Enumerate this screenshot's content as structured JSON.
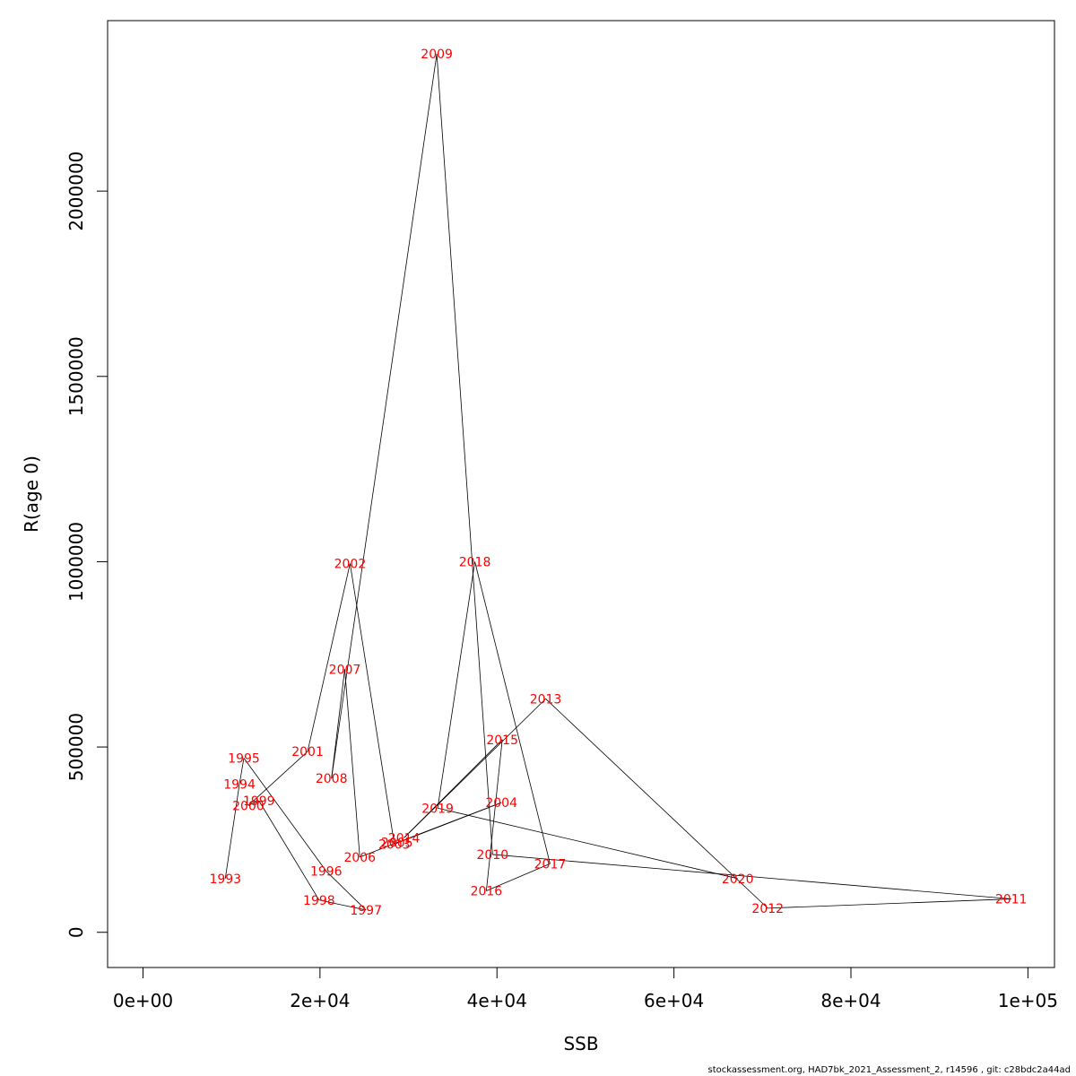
{
  "chart_data": {
    "type": "line",
    "title": "",
    "xlabel": "SSB",
    "ylabel": "R(age 0)",
    "xlim": [
      -4000,
      103000
    ],
    "ylim": [
      -95000,
      2460000
    ],
    "grid": false,
    "x_ticks": [
      {
        "value": 0,
        "label": "0e+00"
      },
      {
        "value": 20000,
        "label": "2e+04"
      },
      {
        "value": 40000,
        "label": "4e+04"
      },
      {
        "value": 60000,
        "label": "6e+04"
      },
      {
        "value": 80000,
        "label": "8e+04"
      },
      {
        "value": 100000,
        "label": "1e+05"
      }
    ],
    "y_ticks": [
      {
        "value": 0,
        "label": "0"
      },
      {
        "value": 500000,
        "label": "500000"
      },
      {
        "value": 1000000,
        "label": "1000000"
      },
      {
        "value": 1500000,
        "label": "1500000"
      },
      {
        "value": 2000000,
        "label": "2000000"
      }
    ],
    "line_color": "#000000",
    "label_color": "#ff0000",
    "points": [
      {
        "label": "1993",
        "x": 9300,
        "y": 145000
      },
      {
        "label": "1994",
        "x": 10900,
        "y": 400000
      },
      {
        "label": "1995",
        "x": 11400,
        "y": 470000
      },
      {
        "label": "1996",
        "x": 20700,
        "y": 165000
      },
      {
        "label": "1997",
        "x": 25200,
        "y": 60000
      },
      {
        "label": "1998",
        "x": 19900,
        "y": 87000
      },
      {
        "label": "1999",
        "x": 13100,
        "y": 355000
      },
      {
        "label": "2000",
        "x": 11900,
        "y": 342000
      },
      {
        "label": "2001",
        "x": 18600,
        "y": 488000
      },
      {
        "label": "2002",
        "x": 23400,
        "y": 995000
      },
      {
        "label": "2003",
        "x": 28400,
        "y": 238000
      },
      {
        "label": "2004",
        "x": 40500,
        "y": 350000
      },
      {
        "label": "2005",
        "x": 28700,
        "y": 242000
      },
      {
        "label": "2006",
        "x": 24500,
        "y": 203000
      },
      {
        "label": "2007",
        "x": 22800,
        "y": 710000
      },
      {
        "label": "2008",
        "x": 21300,
        "y": 415000
      },
      {
        "label": "2009",
        "x": 33200,
        "y": 2370000
      },
      {
        "label": "2010",
        "x": 39500,
        "y": 210000
      },
      {
        "label": "2011",
        "x": 98100,
        "y": 90000
      },
      {
        "label": "2012",
        "x": 70600,
        "y": 65000
      },
      {
        "label": "2013",
        "x": 45500,
        "y": 630000
      },
      {
        "label": "2014",
        "x": 29500,
        "y": 255000
      },
      {
        "label": "2015",
        "x": 40600,
        "y": 520000
      },
      {
        "label": "2016",
        "x": 38800,
        "y": 112000
      },
      {
        "label": "2017",
        "x": 46000,
        "y": 185000
      },
      {
        "label": "2018",
        "x": 37500,
        "y": 1000000
      },
      {
        "label": "2019",
        "x": 33300,
        "y": 335000
      },
      {
        "label": "2020",
        "x": 67200,
        "y": 145000
      }
    ]
  },
  "footer": "stockassessment.org, HAD7bk_2021_Assessment_2, r14596 , git: c28bdc2a44ad"
}
